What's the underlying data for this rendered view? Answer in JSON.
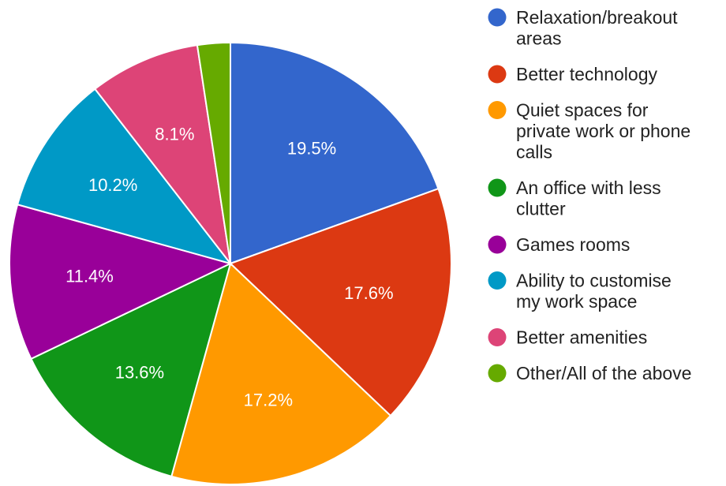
{
  "chart_data": {
    "type": "pie",
    "title": "",
    "legend_position": "right",
    "slices": [
      {
        "label": "Relaxation/breakout areas",
        "legend_lines": [
          "Relaxation/breakout",
          "areas"
        ],
        "value": 19.5,
        "display": "19.5%",
        "color": "#3366cc"
      },
      {
        "label": "Better technology",
        "legend_lines": [
          "Better technology"
        ],
        "value": 17.6,
        "display": "17.6%",
        "color": "#dc3912"
      },
      {
        "label": "Quiet spaces for private work or phone calls",
        "legend_lines": [
          "Quiet spaces for",
          "private work or phone",
          "calls"
        ],
        "value": 17.2,
        "display": "17.2%",
        "color": "#ff9900"
      },
      {
        "label": "An office with less clutter",
        "legend_lines": [
          "An office with less",
          "clutter"
        ],
        "value": 13.6,
        "display": "13.6%",
        "color": "#109618"
      },
      {
        "label": "Games rooms",
        "legend_lines": [
          "Games rooms"
        ],
        "value": 11.4,
        "display": "11.4%",
        "color": "#990099"
      },
      {
        "label": "Ability to customise my work space",
        "legend_lines": [
          "Ability to customise",
          "my work space"
        ],
        "value": 10.2,
        "display": "10.2%",
        "color": "#0099c6"
      },
      {
        "label": "Better amenities",
        "legend_lines": [
          "Better amenities"
        ],
        "value": 8.1,
        "display": "8.1%",
        "color": "#dd4477"
      },
      {
        "label": "Other/All of the above",
        "legend_lines": [
          "Other/All of the above"
        ],
        "value": 2.4,
        "display": "",
        "color": "#66aa00"
      }
    ]
  }
}
